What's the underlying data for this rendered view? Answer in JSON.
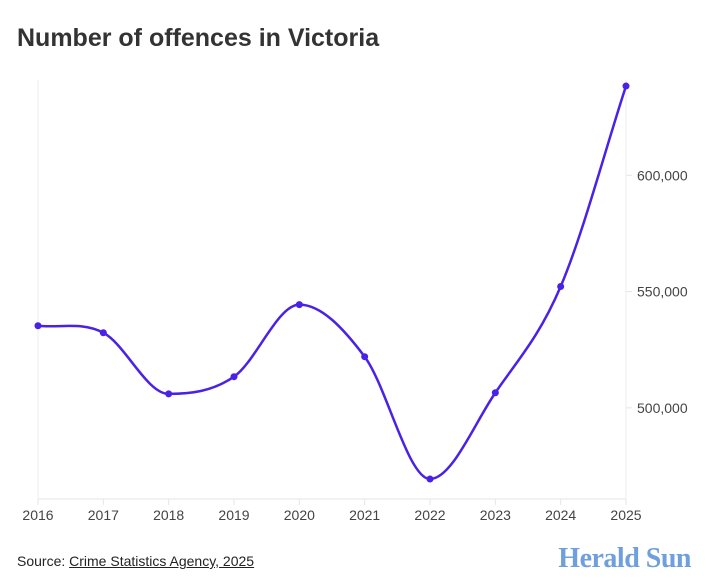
{
  "chart_data": {
    "type": "line",
    "title": "Number of offences in Victoria",
    "xlabel": "",
    "ylabel": "",
    "x": [
      "2016",
      "2017",
      "2018",
      "2019",
      "2020",
      "2021",
      "2022",
      "2023",
      "2024",
      "2025"
    ],
    "series": [
      {
        "name": "Offences",
        "values": [
          535300,
          532300,
          506000,
          513400,
          544400,
          522000,
          469400,
          506500,
          552200,
          638400
        ],
        "color": "#4a22e6"
      }
    ],
    "yticks": [
      500000,
      550000,
      600000
    ],
    "ytick_labels": [
      "500,000",
      "550,000",
      "600,000"
    ],
    "ylim": [
      460800,
      641000
    ],
    "grid": false,
    "y_axis_side": "right"
  },
  "footer": {
    "source_prefix": "Source: ",
    "source_link": "Crime Statistics Agency, 2025",
    "logo": "Herald Sun"
  }
}
